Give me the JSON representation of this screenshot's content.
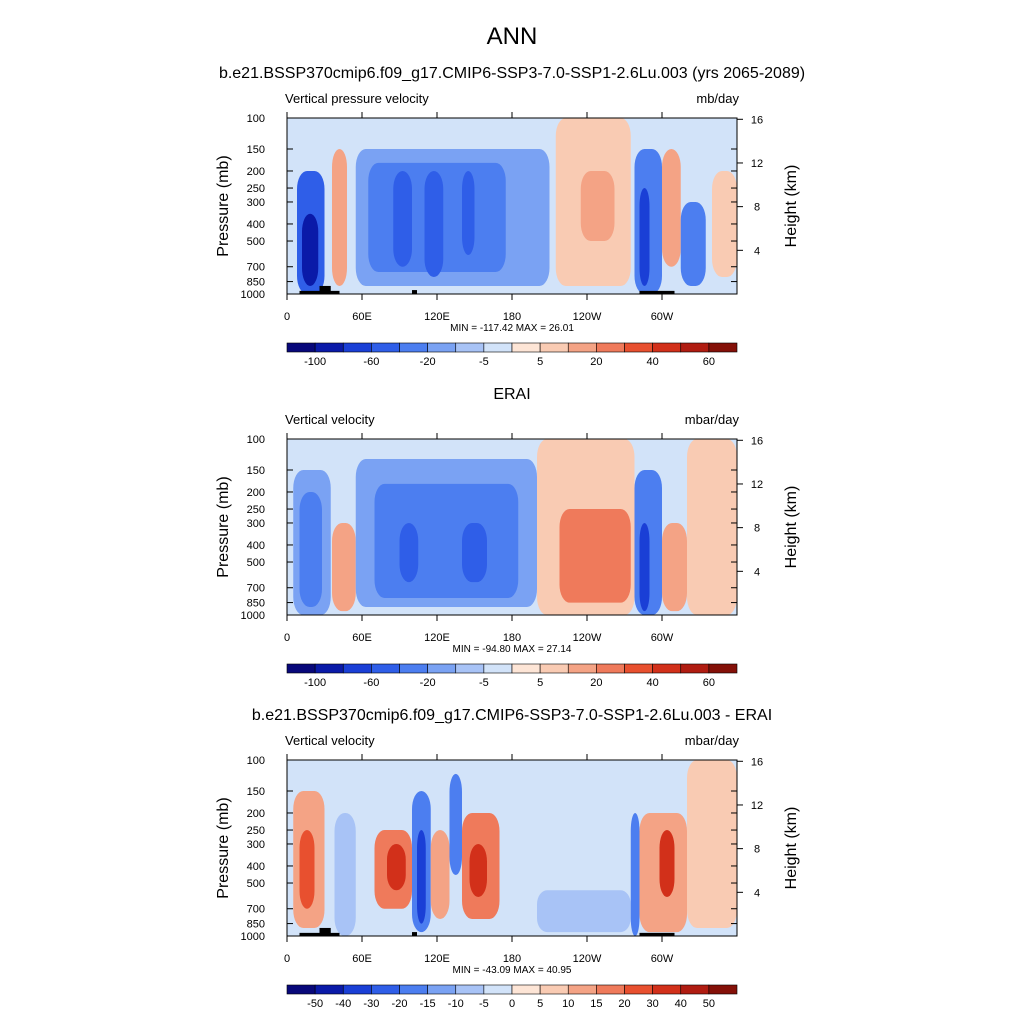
{
  "figure": {
    "title": "ANN"
  },
  "colors": {
    "panel1_scale": [
      "#08087a",
      "#0a1aa8",
      "#1a3fd6",
      "#2f5ee8",
      "#4c7ef0",
      "#7aa2f3",
      "#a8c3f6",
      "#d2e3f9",
      "#fde5d6",
      "#f9cbb3",
      "#f4a385",
      "#ef7a5b",
      "#e8502f",
      "#d2301a",
      "#b01c11",
      "#841008"
    ],
    "panel3_scale": [
      "#08087a",
      "#0a1aa8",
      "#1a3fd6",
      "#2f5ee8",
      "#4c7ef0",
      "#7aa2f3",
      "#a8c3f6",
      "#d2e3f9",
      "#fde5d6",
      "#f9cbb3",
      "#f4a385",
      "#ef7a5b",
      "#e8502f",
      "#d2301a",
      "#b01c11",
      "#841008"
    ],
    "land": "#000000"
  },
  "chart_data": [
    {
      "type": "heatmap",
      "title": "b.e21.BSSP370cmip6.f09_g17.CMIP6-SSP3-7.0-SSP1-2.6Lu.003 (yrs 2065-2089)",
      "left_subtitle": "Vertical pressure velocity",
      "right_subtitle": "mb/day",
      "ylabel": "Pressure (mb)",
      "ylabel_right": "Height (km)",
      "x_ticks": [
        "0",
        "60E",
        "120E",
        "180",
        "120W",
        "60W"
      ],
      "y_ticks": [
        "100",
        "150",
        "200",
        "250",
        "300",
        "400",
        "500",
        "700",
        "850",
        "1000"
      ],
      "y_ticks_right": [
        "16",
        "12",
        "8",
        "4"
      ],
      "ylim": [
        1000,
        100
      ],
      "stats": "MIN = -117.42  MAX =  26.01",
      "colorbar_labels": [
        "-100",
        "-60",
        "-20",
        "-5",
        "5",
        "20",
        "40",
        "60"
      ],
      "colorbar_levels": [
        -120,
        -100,
        -80,
        -60,
        -40,
        -20,
        -10,
        -5,
        0,
        5,
        10,
        20,
        30,
        40,
        50,
        60
      ],
      "land_mask": true,
      "regions": [
        {
          "lon0": 8,
          "lon1": 30,
          "p0": 200,
          "p1": 1000,
          "value": -60
        },
        {
          "lon0": 12,
          "lon1": 25,
          "p0": 350,
          "p1": 900,
          "value": -100
        },
        {
          "lon0": 36,
          "lon1": 48,
          "p0": 150,
          "p1": 900,
          "value": 10
        },
        {
          "lon0": 55,
          "lon1": 210,
          "p0": 150,
          "p1": 900,
          "value": -20
        },
        {
          "lon0": 65,
          "lon1": 175,
          "p0": 180,
          "p1": 750,
          "value": -40
        },
        {
          "lon0": 85,
          "lon1": 100,
          "p0": 200,
          "p1": 700,
          "value": -60
        },
        {
          "lon0": 110,
          "lon1": 125,
          "p0": 200,
          "p1": 800,
          "value": -60
        },
        {
          "lon0": 140,
          "lon1": 150,
          "p0": 200,
          "p1": 600,
          "value": -60
        },
        {
          "lon0": 215,
          "lon1": 275,
          "p0": 100,
          "p1": 900,
          "value": 5
        },
        {
          "lon0": 235,
          "lon1": 262,
          "p0": 200,
          "p1": 500,
          "value": 10
        },
        {
          "lon0": 278,
          "lon1": 300,
          "p0": 150,
          "p1": 1000,
          "value": -40
        },
        {
          "lon0": 282,
          "lon1": 290,
          "p0": 250,
          "p1": 900,
          "value": -80
        },
        {
          "lon0": 300,
          "lon1": 315,
          "p0": 150,
          "p1": 700,
          "value": 10
        },
        {
          "lon0": 315,
          "lon1": 335,
          "p0": 300,
          "p1": 900,
          "value": -40
        },
        {
          "lon0": 340,
          "lon1": 360,
          "p0": 200,
          "p1": 800,
          "value": 5
        }
      ],
      "land_boxes": [
        {
          "lon0": 10,
          "lon1": 42,
          "p0": 960,
          "p1": 1000
        },
        {
          "lon0": 26,
          "lon1": 35,
          "p0": 900,
          "p1": 1000
        },
        {
          "lon0": 100,
          "lon1": 104,
          "p0": 950,
          "p1": 1000
        },
        {
          "lon0": 282,
          "lon1": 310,
          "p0": 960,
          "p1": 1000
        }
      ]
    },
    {
      "type": "heatmap",
      "title": "ERAI",
      "left_subtitle": "Vertical velocity",
      "right_subtitle": "mbar/day",
      "ylabel": "Pressure (mb)",
      "ylabel_right": "Height (km)",
      "x_ticks": [
        "0",
        "60E",
        "120E",
        "180",
        "120W",
        "60W"
      ],
      "y_ticks": [
        "100",
        "150",
        "200",
        "250",
        "300",
        "400",
        "500",
        "700",
        "850",
        "1000"
      ],
      "y_ticks_right": [
        "16",
        "12",
        "8",
        "4"
      ],
      "ylim": [
        1000,
        100
      ],
      "stats": "MIN = -94.80  MAX =  27.14",
      "colorbar_labels": [
        "-100",
        "-60",
        "-20",
        "-5",
        "5",
        "20",
        "40",
        "60"
      ],
      "colorbar_levels": [
        -120,
        -100,
        -80,
        -60,
        -40,
        -20,
        -10,
        -5,
        0,
        5,
        10,
        20,
        30,
        40,
        50,
        60
      ],
      "land_mask": false,
      "regions": [
        {
          "lon0": 5,
          "lon1": 35,
          "p0": 150,
          "p1": 1000,
          "value": -20
        },
        {
          "lon0": 10,
          "lon1": 28,
          "p0": 200,
          "p1": 900,
          "value": -40
        },
        {
          "lon0": 36,
          "lon1": 55,
          "p0": 300,
          "p1": 950,
          "value": 10
        },
        {
          "lon0": 55,
          "lon1": 200,
          "p0": 130,
          "p1": 900,
          "value": -20
        },
        {
          "lon0": 70,
          "lon1": 185,
          "p0": 180,
          "p1": 800,
          "value": -40
        },
        {
          "lon0": 90,
          "lon1": 105,
          "p0": 300,
          "p1": 650,
          "value": -60
        },
        {
          "lon0": 140,
          "lon1": 160,
          "p0": 300,
          "p1": 650,
          "value": -60
        },
        {
          "lon0": 200,
          "lon1": 278,
          "p0": 100,
          "p1": 1000,
          "value": 5
        },
        {
          "lon0": 218,
          "lon1": 275,
          "p0": 250,
          "p1": 850,
          "value": 20
        },
        {
          "lon0": 278,
          "lon1": 300,
          "p0": 150,
          "p1": 1000,
          "value": -40
        },
        {
          "lon0": 282,
          "lon1": 290,
          "p0": 300,
          "p1": 950,
          "value": -80
        },
        {
          "lon0": 300,
          "lon1": 320,
          "p0": 300,
          "p1": 950,
          "value": 10
        },
        {
          "lon0": 320,
          "lon1": 360,
          "p0": 100,
          "p1": 1000,
          "value": 5
        }
      ],
      "land_boxes": []
    },
    {
      "type": "heatmap",
      "title": "b.e21.BSSP370cmip6.f09_g17.CMIP6-SSP3-7.0-SSP1-2.6Lu.003 - ERAI",
      "left_subtitle": "Vertical velocity",
      "right_subtitle": "mbar/day",
      "ylabel": "Pressure (mb)",
      "ylabel_right": "Height (km)",
      "x_ticks": [
        "0",
        "60E",
        "120E",
        "180",
        "120W",
        "60W"
      ],
      "y_ticks": [
        "100",
        "150",
        "200",
        "250",
        "300",
        "400",
        "500",
        "700",
        "850",
        "1000"
      ],
      "y_ticks_right": [
        "16",
        "12",
        "8",
        "4"
      ],
      "ylim": [
        1000,
        100
      ],
      "stats": "MIN = -43.09  MAX =  40.95",
      "colorbar_labels": [
        "-50",
        "-40",
        "-30",
        "-20",
        "-15",
        "-10",
        "-5",
        "0",
        "5",
        "10",
        "15",
        "20",
        "30",
        "40",
        "50"
      ],
      "colorbar_levels": [
        -60,
        -50,
        -40,
        -30,
        -20,
        -15,
        -10,
        -5,
        0,
        5,
        10,
        15,
        20,
        30,
        40,
        50
      ],
      "land_mask": true,
      "regions": [
        {
          "lon0": 5,
          "lon1": 30,
          "p0": 150,
          "p1": 900,
          "value": 10
        },
        {
          "lon0": 10,
          "lon1": 22,
          "p0": 250,
          "p1": 700,
          "value": 20
        },
        {
          "lon0": 38,
          "lon1": 55,
          "p0": 200,
          "p1": 1000,
          "value": -10
        },
        {
          "lon0": 70,
          "lon1": 100,
          "p0": 250,
          "p1": 700,
          "value": 15
        },
        {
          "lon0": 80,
          "lon1": 95,
          "p0": 300,
          "p1": 550,
          "value": 30
        },
        {
          "lon0": 100,
          "lon1": 115,
          "p0": 150,
          "p1": 950,
          "value": -20
        },
        {
          "lon0": 104,
          "lon1": 111,
          "p0": 250,
          "p1": 850,
          "value": -40
        },
        {
          "lon0": 115,
          "lon1": 130,
          "p0": 250,
          "p1": 800,
          "value": 10
        },
        {
          "lon0": 130,
          "lon1": 140,
          "p0": 120,
          "p1": 450,
          "value": -20
        },
        {
          "lon0": 140,
          "lon1": 170,
          "p0": 200,
          "p1": 800,
          "value": 15
        },
        {
          "lon0": 146,
          "lon1": 160,
          "p0": 300,
          "p1": 600,
          "value": 30
        },
        {
          "lon0": 170,
          "lon1": 275,
          "p0": 150,
          "p1": 950,
          "value": -5
        },
        {
          "lon0": 200,
          "lon1": 275,
          "p0": 550,
          "p1": 950,
          "value": -10
        },
        {
          "lon0": 275,
          "lon1": 282,
          "p0": 200,
          "p1": 1000,
          "value": -20
        },
        {
          "lon0": 282,
          "lon1": 320,
          "p0": 200,
          "p1": 950,
          "value": 10
        },
        {
          "lon0": 298,
          "lon1": 310,
          "p0": 250,
          "p1": 600,
          "value": 30
        },
        {
          "lon0": 320,
          "lon1": 360,
          "p0": 100,
          "p1": 900,
          "value": 5
        }
      ],
      "land_boxes": [
        {
          "lon0": 10,
          "lon1": 42,
          "p0": 960,
          "p1": 1000
        },
        {
          "lon0": 26,
          "lon1": 35,
          "p0": 900,
          "p1": 1000
        },
        {
          "lon0": 100,
          "lon1": 104,
          "p0": 950,
          "p1": 1000
        },
        {
          "lon0": 282,
          "lon1": 310,
          "p0": 960,
          "p1": 1000
        }
      ]
    }
  ]
}
